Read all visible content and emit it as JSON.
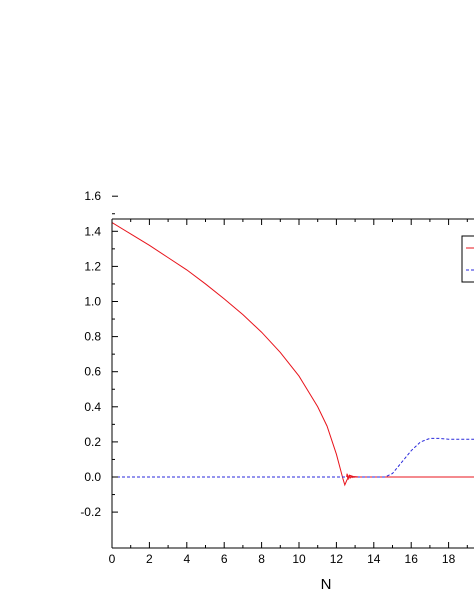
{
  "chart_data": {
    "type": "line",
    "title": "",
    "xlabel": "N",
    "ylabel": "",
    "xlim": [
      0,
      19.5
    ],
    "ylim": [
      -0.2,
      1.6
    ],
    "xticks": [
      "0",
      "2",
      "4",
      "6",
      "8",
      "10",
      "12",
      "14",
      "16",
      "18"
    ],
    "yticks": [
      "-0.2",
      "0.0",
      "0.2",
      "0.4",
      "0.6",
      "0.8",
      "1.0",
      "1.2",
      "1.4",
      "1.6"
    ],
    "grid": false,
    "legend_position": "top-right",
    "series": [
      {
        "color": "#e8141c",
        "style": "solid",
        "x": [
          0,
          1,
          2,
          3,
          4,
          5,
          6,
          7,
          8,
          9,
          10,
          11,
          11.5,
          12,
          12.2,
          12.35,
          12.45,
          12.55,
          12.7,
          12.9,
          13.2,
          20
        ],
        "y": [
          1.45,
          1.385,
          1.32,
          1.25,
          1.18,
          1.1,
          1.015,
          0.925,
          0.825,
          0.71,
          0.575,
          0.4,
          0.29,
          0.13,
          0.05,
          -0.01,
          -0.045,
          -0.02,
          0.01,
          0.003,
          0,
          0
        ]
      },
      {
        "color": "#2a2adc",
        "style": "dashed",
        "x": [
          0,
          14.6,
          15,
          15.5,
          16,
          16.5,
          17,
          17.5,
          18,
          19,
          20
        ],
        "y": [
          0,
          0,
          0.02,
          0.085,
          0.15,
          0.2,
          0.22,
          0.22,
          0.215,
          0.215,
          0.215
        ]
      }
    ]
  }
}
